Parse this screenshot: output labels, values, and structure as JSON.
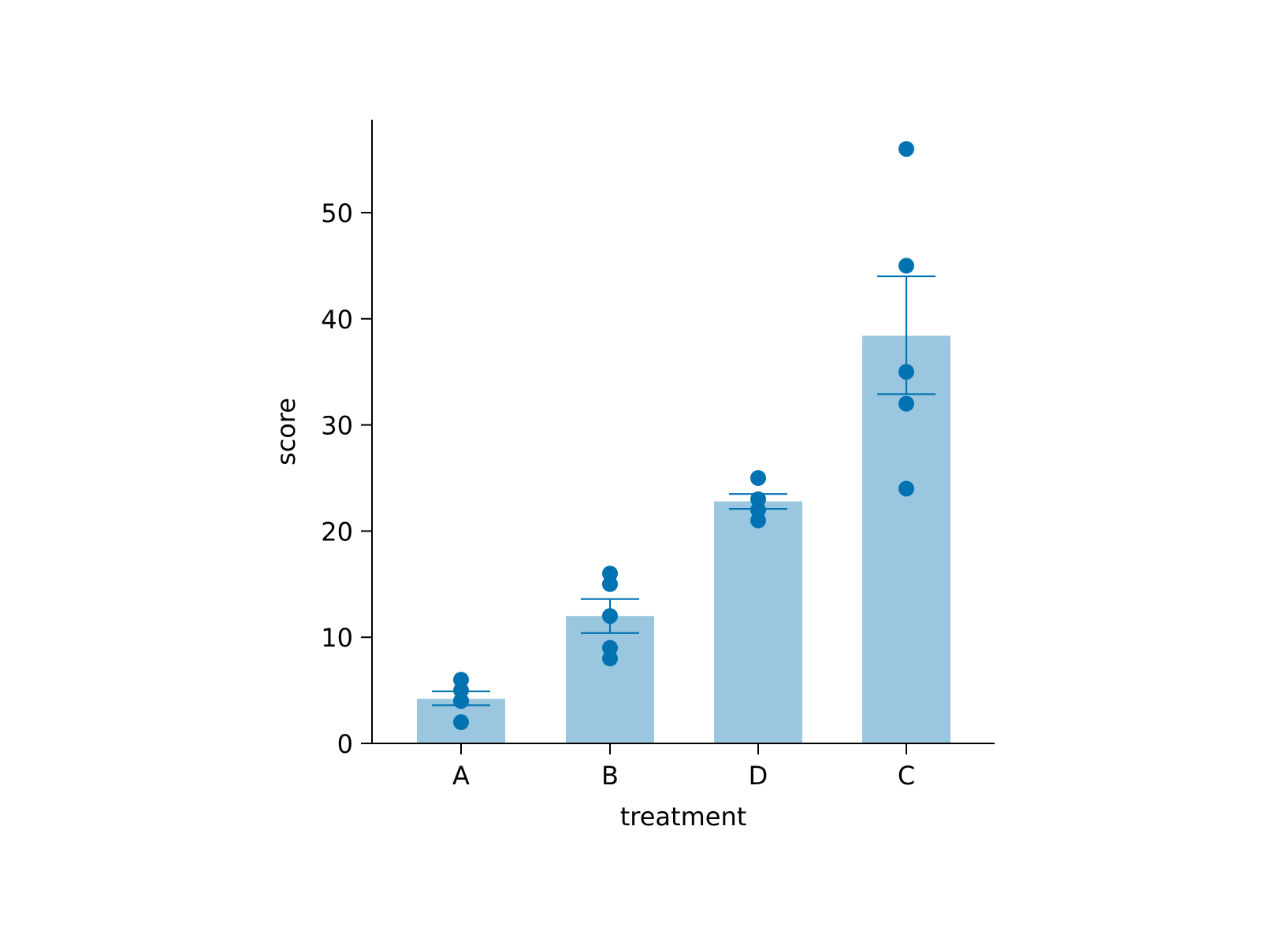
{
  "chart_data": {
    "type": "bar",
    "xlabel": "treatment",
    "ylabel": "score",
    "categories": [
      "A",
      "B",
      "D",
      "C"
    ],
    "values": [
      4.2,
      12.0,
      22.8,
      38.4
    ],
    "error_bars": [
      [
        3.6,
        4.9
      ],
      [
        10.4,
        13.6
      ],
      [
        22.1,
        23.5
      ],
      [
        32.9,
        44.0
      ]
    ],
    "points": [
      [
        6,
        5,
        4,
        4,
        2
      ],
      [
        16,
        15,
        12,
        9,
        8
      ],
      [
        25,
        23,
        22,
        21
      ],
      [
        56,
        45,
        35,
        32,
        24
      ]
    ],
    "yticks": [
      0,
      10,
      20,
      30,
      40,
      50
    ],
    "ylim": [
      0,
      58.5
    ],
    "grid": false,
    "legend": "none",
    "bar_color": "#9ac7df",
    "point_color": "#0072b2",
    "errorbar_color": "#0072b2"
  }
}
